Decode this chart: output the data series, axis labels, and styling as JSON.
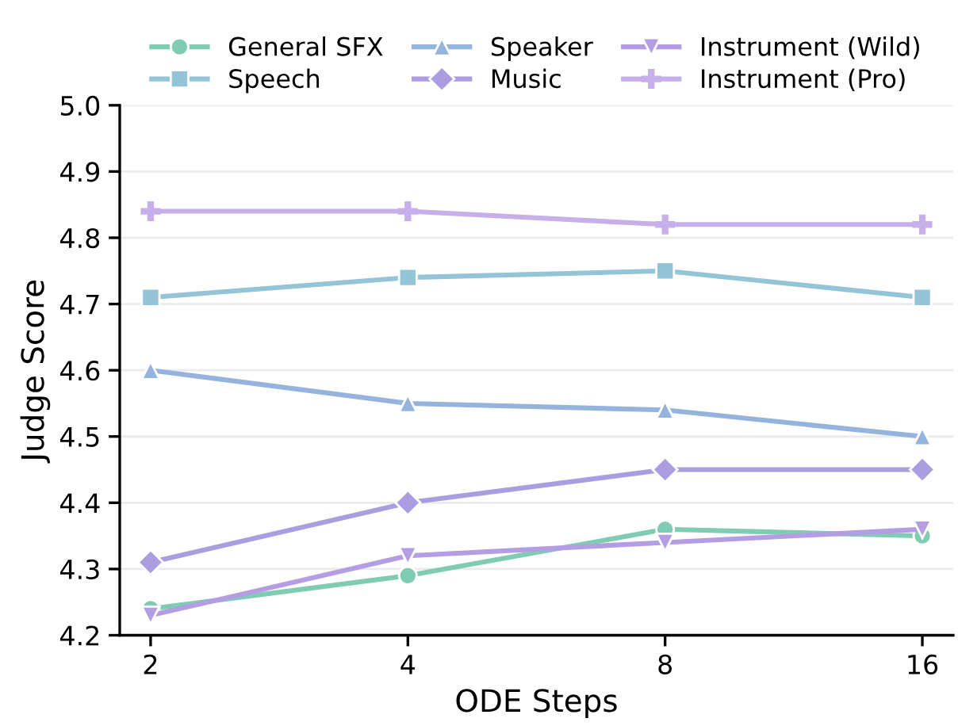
{
  "chart_data": {
    "type": "line",
    "xlabel": "ODE Steps",
    "ylabel": "Judge Score",
    "categories": [
      "2",
      "4",
      "8",
      "16"
    ],
    "series": [
      {
        "name": "General SFX",
        "color": "#80cbb4",
        "marker": "circle",
        "values": [
          4.24,
          4.29,
          4.36,
          4.35
        ]
      },
      {
        "name": "Speech",
        "color": "#94c4d8",
        "marker": "square",
        "values": [
          4.71,
          4.74,
          4.75,
          4.71
        ]
      },
      {
        "name": "Speaker",
        "color": "#95b4dd",
        "marker": "triangle",
        "values": [
          4.6,
          4.55,
          4.54,
          4.5
        ]
      },
      {
        "name": "Music",
        "color": "#ab9ee0",
        "marker": "diamond",
        "values": [
          4.31,
          4.4,
          4.45,
          4.45
        ]
      },
      {
        "name": "Instrument (Wild)",
        "color": "#b59de3",
        "marker": "triangle_down",
        "values": [
          4.23,
          4.32,
          4.34,
          4.36
        ]
      },
      {
        "name": "Instrument (Pro)",
        "color": "#c7afe9",
        "marker": "plus",
        "values": [
          4.84,
          4.84,
          4.82,
          4.82
        ]
      }
    ],
    "ylim": [
      4.2,
      5.0
    ],
    "yticks": [
      4.2,
      4.3,
      4.4,
      4.5,
      4.6,
      4.7,
      4.8,
      4.9,
      {
        "value": 5,
        "label": "5.0"
      }
    ],
    "grid": "y",
    "legend": "top",
    "line_style": "solid"
  }
}
